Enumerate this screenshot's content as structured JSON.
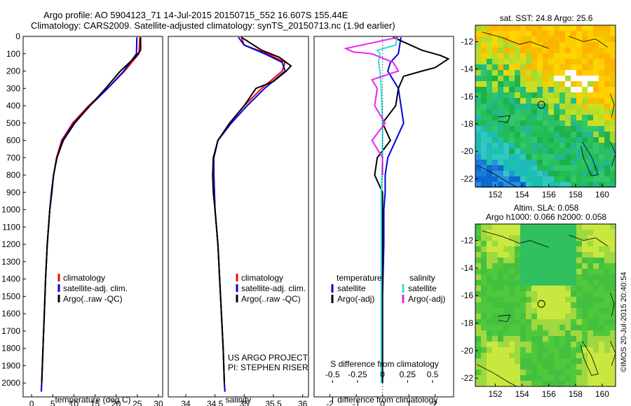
{
  "title": {
    "line1": "Argo profile: AO 5904123_71 14-Jul-2015 20150715_552 16.607S 155.44E",
    "line2": "Climatology: CARS2009. Satellite-adjusted climatology: synTS_20150713.nc (1.9d earlier)"
  },
  "sidebar_text": "©IMOS 20-Jul-2015 20:40:54",
  "colors": {
    "climatology": "#ff0000",
    "satellite": "#0000dd",
    "argo": "#000000",
    "sal_sat": "#33dddd",
    "sal_argo": "#ee22ee"
  },
  "chart_data": [
    {
      "type": "line",
      "id": "temperature",
      "xlabel": "temperature (deg C)",
      "xlim": [
        -2,
        31
      ],
      "ylim": [
        2080,
        0
      ],
      "xticks": [
        0,
        5,
        10,
        15,
        20,
        25,
        30
      ],
      "yticks": [
        0,
        100,
        200,
        300,
        400,
        500,
        600,
        700,
        800,
        900,
        1000,
        1100,
        1200,
        1300,
        1400,
        1500,
        1600,
        1700,
        1800,
        1900,
        2000
      ],
      "legend": [
        "climatology",
        "satellite-adj. clim.",
        "Argo(..raw -QC)"
      ],
      "series": [
        {
          "name": "climatology",
          "y": [
            5,
            100,
            200,
            300,
            400,
            500,
            600,
            700,
            800,
            900,
            1000,
            1200,
            1400,
            1600,
            1800,
            2000,
            2050
          ],
          "x": [
            25.6,
            25.4,
            22,
            18,
            13.5,
            9.7,
            7.1,
            5.9,
            5.2,
            4.7,
            4.3,
            3.7,
            3.3,
            3.0,
            2.7,
            2.4,
            2.3
          ]
        },
        {
          "name": "satellite-adj. clim.",
          "y": [
            5,
            100,
            200,
            300,
            400,
            500,
            600,
            700,
            800,
            900,
            1000,
            1200,
            1400,
            1600,
            1800,
            2000,
            2050
          ],
          "x": [
            24.9,
            24.8,
            21.8,
            18,
            13.8,
            10,
            7.3,
            6.0,
            5.2,
            4.7,
            4.3,
            3.7,
            3.3,
            3.0,
            2.7,
            2.4,
            2.3
          ]
        },
        {
          "name": "Argo(..raw -QC)",
          "y": [
            5,
            80,
            120,
            200,
            300,
            400,
            500,
            600,
            700,
            800,
            900,
            1000,
            1200,
            1400,
            1600,
            1800,
            2000
          ],
          "x": [
            25.8,
            25.8,
            24.5,
            21,
            17.5,
            13.8,
            10.2,
            7.5,
            6.0,
            5.2,
            4.8,
            4.3,
            3.7,
            3.3,
            3.0,
            2.7,
            2.4
          ]
        }
      ]
    },
    {
      "type": "line",
      "id": "salinity",
      "xlabel": "salinity",
      "xlim": [
        33.7,
        36.1
      ],
      "ylim": [
        2080,
        0
      ],
      "xticks": [
        34,
        34.5,
        35,
        35.5,
        36
      ],
      "legend": [
        "climatology",
        "satellite-adj. clim.",
        "Argo(..raw -QC)"
      ],
      "annotation": [
        "US ARGO PROJECT",
        "PI: STEPHEN RISER"
      ],
      "series": [
        {
          "name": "climatology",
          "y": [
            5,
            50,
            100,
            150,
            200,
            300,
            400,
            500,
            600,
            700,
            800,
            1000,
            1200,
            1400,
            1600,
            1800,
            2000,
            2050
          ],
          "x": [
            34.95,
            35.0,
            35.4,
            35.7,
            35.65,
            35.3,
            35.0,
            34.75,
            34.55,
            34.48,
            34.48,
            34.5,
            34.55,
            34.58,
            34.61,
            34.64,
            34.66,
            34.67
          ]
        },
        {
          "name": "satellite-adj. clim.",
          "y": [
            5,
            50,
            100,
            150,
            200,
            300,
            400,
            500,
            600,
            700,
            800,
            1000,
            1200,
            1400,
            1600,
            1800,
            2000,
            2050
          ],
          "x": [
            34.9,
            35.0,
            35.35,
            35.65,
            35.7,
            35.35,
            35.05,
            34.78,
            34.55,
            34.48,
            34.48,
            34.5,
            34.55,
            34.58,
            34.61,
            34.64,
            34.66,
            34.67
          ]
        },
        {
          "name": "Argo(..raw -QC)",
          "y": [
            5,
            80,
            120,
            170,
            200,
            260,
            300,
            400,
            500,
            600,
            700,
            800,
            900,
            1000,
            1200,
            1400,
            1600,
            1800,
            2000
          ],
          "x": [
            34.95,
            35.3,
            35.6,
            35.8,
            35.72,
            35.5,
            35.2,
            35.0,
            34.75,
            34.55,
            34.47,
            34.46,
            34.47,
            34.5,
            34.55,
            34.58,
            34.61,
            34.64,
            34.66
          ]
        }
      ]
    },
    {
      "type": "line",
      "id": "difference",
      "xlabel_top": "S difference from climatology",
      "xlabel_bottom": "T difference from climatology",
      "xlim": [
        -2.6,
        2.7
      ],
      "ylim": [
        2080,
        0
      ],
      "xticks_bottom": [
        -2,
        -1,
        0,
        1,
        2
      ],
      "xticks_top": [
        {
          "pos": -1.9,
          "label": "-0.5"
        },
        {
          "pos": -0.95,
          "label": "-0.25"
        },
        {
          "pos": 0,
          "label": "0"
        },
        {
          "pos": 0.95,
          "label": "0.25"
        },
        {
          "pos": 1.9,
          "label": "0.5"
        }
      ],
      "legend": {
        "temperature_head": "temperature",
        "salinity_head": "salinity",
        "satellite": "satellite",
        "argo": "Argo(-adj)"
      },
      "series": [
        {
          "name": "temperature satellite",
          "y": [
            5,
            100,
            150,
            200,
            300,
            400,
            500,
            600,
            700,
            800,
            900,
            1000,
            1200,
            1500,
            2000
          ],
          "x": [
            0.7,
            0.6,
            0.3,
            0.2,
            0.6,
            0.7,
            0.8,
            0.5,
            0.2,
            0.1,
            0.1,
            0.05,
            0.05,
            0.0,
            0.0
          ]
        },
        {
          "name": "temperature Argo(-adj)",
          "y": [
            5,
            80,
            110,
            130,
            150,
            180,
            200,
            230,
            300,
            400,
            500,
            600,
            700,
            800,
            900,
            1000,
            1200,
            1600,
            2000
          ],
          "x": [
            0.4,
            1.5,
            2.2,
            2.5,
            2.3,
            2.0,
            1.5,
            0.8,
            0.6,
            0.5,
            0.0,
            0.3,
            -0.2,
            -0.3,
            0.0,
            0.0,
            0.0,
            0.0,
            0.0
          ]
        },
        {
          "name": "salinity satellite",
          "y": [
            5,
            50,
            80,
            100,
            150,
            200,
            300,
            500,
            700,
            900,
            1200,
            2000
          ],
          "x": [
            0.55,
            0.5,
            -0.2,
            -0.1,
            -0.15,
            -0.1,
            -0.05,
            0.0,
            0.0,
            -0.05,
            -0.05,
            -0.05
          ]
        },
        {
          "name": "salinity Argo(-adj)",
          "y": [
            5,
            70,
            90,
            100,
            150,
            200,
            250,
            300,
            400,
            500,
            600,
            700,
            800
          ],
          "x": [
            0.6,
            -1.4,
            -1.1,
            -0.4,
            0.4,
            0.6,
            -0.4,
            -0.2,
            -0.3,
            0.1,
            -0.4,
            0.0,
            0.0
          ]
        }
      ]
    },
    {
      "type": "heatmap",
      "id": "sst-map",
      "title": "sat. SST: 24.8 Argo: 25.6",
      "xticks": [
        152,
        154,
        156,
        158,
        160
      ],
      "yticks": [
        -12,
        -14,
        -16,
        -18,
        -20,
        -22
      ],
      "xlim": [
        150.5,
        161
      ],
      "ylim": [
        -22.6,
        -10.8
      ],
      "marker": {
        "lon": 155.44,
        "lat": -16.607
      }
    },
    {
      "type": "heatmap",
      "id": "sla-map",
      "title_lines": [
        "Altim. SLA: 0.058",
        "Argo h1000: 0.066 h2000: 0.058"
      ],
      "xticks": [
        152,
        154,
        156,
        158,
        160
      ],
      "yticks": [
        -12,
        -14,
        -16,
        -18,
        -20,
        -22
      ],
      "xlim": [
        150.5,
        161
      ],
      "ylim": [
        -22.6,
        -10.8
      ],
      "marker": {
        "lon": 155.44,
        "lat": -16.607
      }
    }
  ]
}
